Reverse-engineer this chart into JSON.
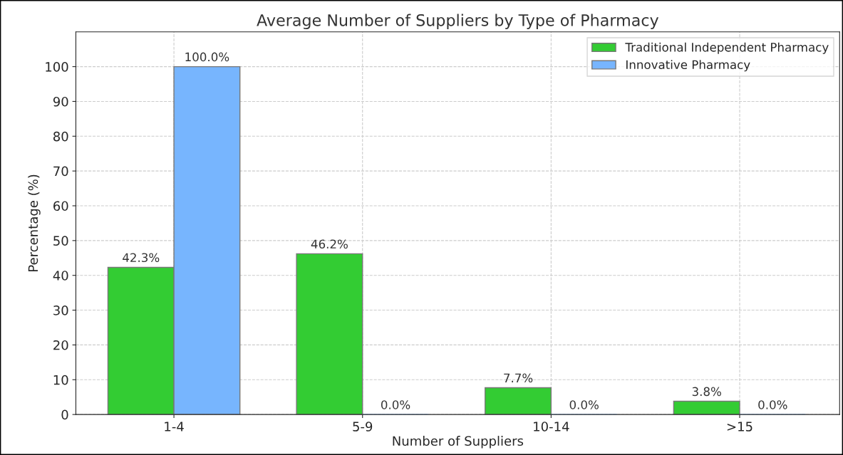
{
  "chart_data": {
    "type": "bar",
    "title": "Average Number of Suppliers by Type of Pharmacy",
    "xlabel": "Number of Suppliers",
    "ylabel": "Percentage (%)",
    "categories": [
      "1-4",
      "5-9",
      "10-14",
      ">15"
    ],
    "series": [
      {
        "name": "Traditional Independent Pharmacy",
        "color": "#33cc33",
        "values": [
          42.3,
          46.2,
          7.7,
          3.8
        ],
        "value_labels": [
          "42.3%",
          "46.2%",
          "7.7%",
          "3.8%"
        ]
      },
      {
        "name": "Innovative Pharmacy",
        "color": "#77b5fe",
        "values": [
          100.0,
          0.0,
          0.0,
          0.0
        ],
        "value_labels": [
          "100.0%",
          "0.0%",
          "0.0%",
          "0.0%"
        ]
      }
    ],
    "ylim": [
      0,
      110
    ],
    "yticks": [
      0,
      10,
      20,
      30,
      40,
      50,
      60,
      70,
      80,
      90,
      100
    ],
    "grid": true,
    "legend": "top right"
  }
}
